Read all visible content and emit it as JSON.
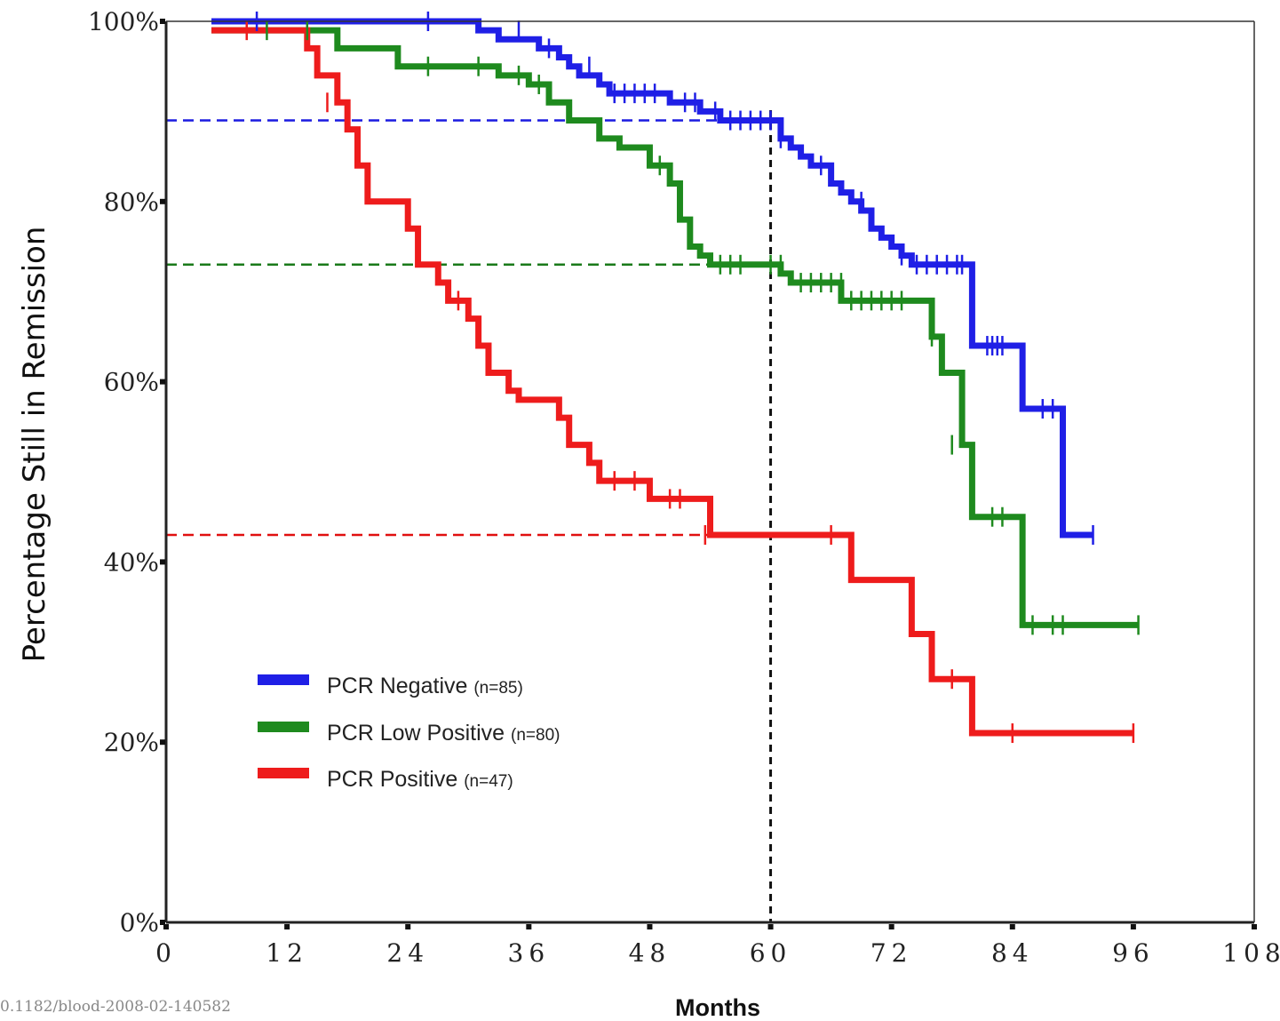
{
  "chart_data": {
    "type": "line",
    "step": true,
    "xlabel": "Months",
    "ylabel": "Percentage Still in Remission",
    "xlim": [
      0,
      108
    ],
    "ylim": [
      0,
      100
    ],
    "x_ticks": [
      "0",
      "12",
      "24",
      "36",
      "48",
      "60",
      "72",
      "84",
      "96",
      "108"
    ],
    "x_tick_values": [
      0,
      12,
      24,
      36,
      48,
      60,
      72,
      84,
      96,
      108
    ],
    "y_ticks": [
      "0%",
      "20%",
      "40%",
      "60%",
      "80%",
      "100%"
    ],
    "y_tick_values": [
      0,
      20,
      40,
      60,
      80,
      100
    ],
    "legend_position": "lower-left",
    "reference_lines": [
      {
        "orientation": "vertical",
        "x": 60,
        "color": "#111111"
      },
      {
        "orientation": "horizontal",
        "y": 89,
        "x_to": 60,
        "color": "#1a1ae0"
      },
      {
        "orientation": "horizontal",
        "y": 73,
        "x_to": 60,
        "color": "#1a7a1a"
      },
      {
        "orientation": "horizontal",
        "y": 43,
        "x_to": 60,
        "color": "#e01010"
      }
    ],
    "series": [
      {
        "name": "PCR Negative",
        "n_label": "(n=85)",
        "color": "#1f1fe6",
        "x": [
          4.5,
          31,
          33,
          37,
          39,
          40,
          41,
          43,
          44,
          50,
          53,
          55,
          61,
          62,
          63,
          64,
          66,
          67,
          68,
          69,
          70,
          71,
          72,
          73,
          74,
          80,
          85,
          89,
          92
        ],
        "y": [
          100,
          99,
          98,
          97,
          96,
          95,
          94,
          93,
          92,
          91,
          90,
          89,
          87,
          86,
          85,
          84,
          82,
          81,
          80,
          79,
          77,
          76,
          75,
          74,
          73,
          64,
          57,
          43,
          43
        ],
        "censor_x": [
          9,
          26,
          35,
          38,
          42,
          44.5,
          45.5,
          46.5,
          47.5,
          48.5,
          51.5,
          52.5,
          54.5,
          56,
          57,
          58,
          59,
          60,
          61,
          65,
          69,
          73,
          74.5,
          75.5,
          76.5,
          77.5,
          78.5,
          79,
          81.5,
          82,
          82.5,
          83,
          87,
          88,
          92
        ],
        "censor_y": [
          100,
          100,
          99,
          97,
          95,
          92,
          92,
          92,
          92,
          92,
          91,
          91,
          90,
          89,
          89,
          89,
          89,
          89,
          87,
          84,
          80,
          74,
          73,
          73,
          73,
          73,
          73,
          73,
          64,
          64,
          64,
          64,
          57,
          57,
          43
        ]
      },
      {
        "name": "PCR Low Positive",
        "n_label": "(n=80)",
        "color": "#1e8a1e",
        "x": [
          4.5,
          17,
          23,
          33,
          36,
          38,
          40,
          43,
          45,
          48,
          50,
          51,
          52,
          53,
          54,
          61,
          62,
          67,
          76,
          77,
          79,
          80,
          85,
          96.5
        ],
        "y": [
          99,
          97,
          95,
          94,
          93,
          91,
          89,
          87,
          86,
          84,
          82,
          78,
          75,
          74,
          73,
          72,
          71,
          69,
          65,
          61,
          53,
          45,
          33,
          33
        ],
        "censor_x": [
          10,
          14,
          26,
          31,
          35,
          37,
          49,
          55,
          56,
          57,
          60,
          61,
          63,
          64,
          65,
          66,
          67,
          68,
          69,
          70,
          71,
          72,
          73,
          76,
          78,
          82,
          83,
          86,
          88,
          89,
          96.5
        ],
        "censor_y": [
          99,
          99,
          95,
          95,
          94,
          93,
          84,
          73,
          73,
          73,
          73,
          73,
          71,
          71,
          71,
          71,
          71,
          69,
          69,
          69,
          69,
          69,
          69,
          65,
          53,
          45,
          45,
          33,
          33,
          33,
          33
        ]
      },
      {
        "name": "PCR Positive",
        "n_label": "(n=47)",
        "color": "#ee1c1c",
        "x": [
          4.5,
          14,
          15,
          17,
          18,
          19,
          20,
          24,
          25,
          27,
          28,
          30,
          31,
          32,
          34,
          35,
          36,
          39,
          40,
          42,
          43,
          48,
          54,
          68,
          74,
          76,
          80,
          96
        ],
        "y": [
          99,
          97,
          94,
          91,
          88,
          84,
          80,
          77,
          73,
          71,
          69,
          67,
          64,
          61,
          59,
          58,
          58,
          56,
          53,
          51,
          49,
          47,
          43,
          38,
          32,
          27,
          21,
          21
        ],
        "censor_x": [
          8,
          16,
          29,
          44.5,
          46.5,
          50,
          51,
          53.5,
          66,
          78,
          84,
          96
        ],
        "censor_y": [
          99,
          91,
          69,
          49,
          49,
          47,
          47,
          43,
          43,
          27,
          21,
          21
        ]
      }
    ]
  },
  "watermark": "0.1182/blood-2008-02-140582"
}
